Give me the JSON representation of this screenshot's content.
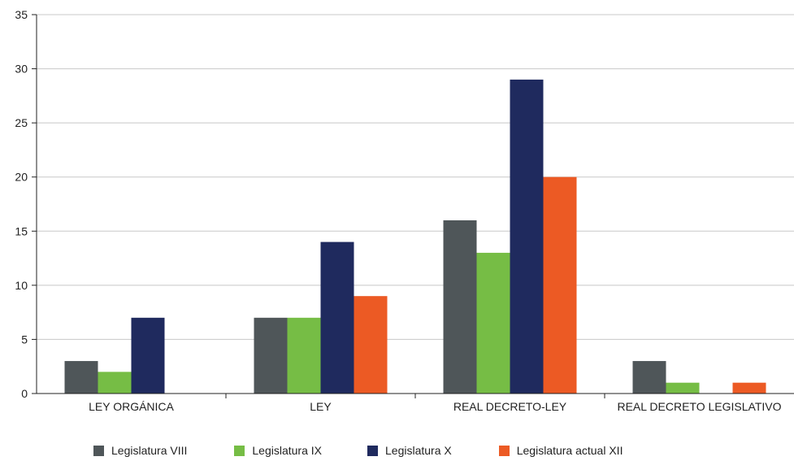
{
  "chart_data": {
    "type": "bar",
    "title": "",
    "xlabel": "",
    "ylabel": "",
    "ylim": [
      0,
      35
    ],
    "yticks": [
      0,
      5,
      10,
      15,
      20,
      25,
      30,
      35
    ],
    "grid": true,
    "legend_position": "bottom",
    "categories": [
      "LEY ORGÁNICA",
      "LEY",
      "REAL DECRETO-LEY",
      "REAL DECRETO LEGISLATIVO"
    ],
    "series": [
      {
        "name": "Legislatura VIII",
        "color": "#4f5659",
        "values": [
          3,
          7,
          16,
          3
        ]
      },
      {
        "name": "Legislatura IX",
        "color": "#76bd45",
        "values": [
          2,
          7,
          13,
          1
        ]
      },
      {
        "name": "Legislatura X",
        "color": "#1f2a5e",
        "values": [
          7,
          14,
          29,
          0
        ]
      },
      {
        "name": "Legislatura actual XII",
        "color": "#ec5a24",
        "values": [
          0,
          9,
          20,
          1
        ]
      }
    ]
  }
}
